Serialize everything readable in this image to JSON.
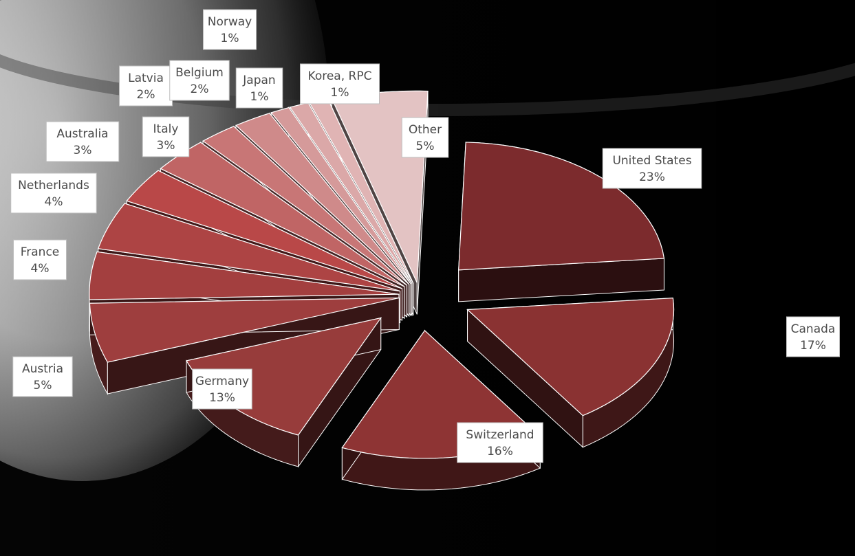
{
  "chart_data": {
    "type": "pie",
    "variant": "3d-exploded",
    "title": "",
    "legend": "none",
    "data_labels": "category-and-percent-callouts",
    "slices": [
      {
        "label": "United States",
        "percent_text": "23%",
        "value": 23,
        "color": "#7c2b2d"
      },
      {
        "label": "Canada",
        "percent_text": "17%",
        "value": 17,
        "color": "#8a3232"
      },
      {
        "label": "Switzerland",
        "percent_text": "16%",
        "value": 16,
        "color": "#8e3434"
      },
      {
        "label": "Germany",
        "percent_text": "13%",
        "value": 13,
        "color": "#973c3b"
      },
      {
        "label": "Austria",
        "percent_text": "5%",
        "value": 5,
        "color": "#9e3e3e"
      },
      {
        "label": "France",
        "percent_text": "4%",
        "value": 4,
        "color": "#a33f3f"
      },
      {
        "label": "Netherlands",
        "percent_text": "4%",
        "value": 4,
        "color": "#ad4444"
      },
      {
        "label": "Australia",
        "percent_text": "3%",
        "value": 3,
        "color": "#b94848"
      },
      {
        "label": "Italy",
        "percent_text": "3%",
        "value": 3,
        "color": "#c06565"
      },
      {
        "label": "Latvia",
        "percent_text": "2%",
        "value": 2,
        "color": "#c87676"
      },
      {
        "label": "Belgium",
        "percent_text": "2%",
        "value": 2,
        "color": "#cf8a8a"
      },
      {
        "label": "Japan",
        "percent_text": "1%",
        "value": 1,
        "color": "#d59a9a"
      },
      {
        "label": "Norway",
        "percent_text": "1%",
        "value": 1,
        "color": "#dba8a8"
      },
      {
        "label": "Korea, RPC",
        "percent_text": "1%",
        "value": 1,
        "color": "#e0b4b4"
      },
      {
        "label": "Other",
        "percent_text": "5%",
        "value": 5,
        "color": "#e3c3c3"
      }
    ]
  },
  "background": {
    "description_color": "#000000",
    "moon_color": "#cfcfcf"
  }
}
